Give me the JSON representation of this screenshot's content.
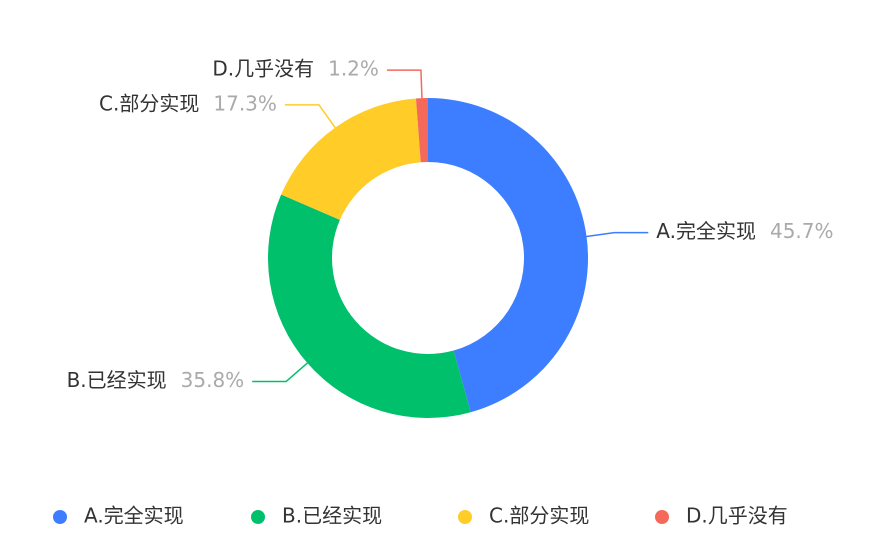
{
  "chart_data": {
    "type": "donut",
    "categories": [
      "A.完全实现",
      "B.已经实现",
      "C.部分实现",
      "D.几乎没有"
    ],
    "values": [
      45.7,
      35.8,
      17.3,
      1.2
    ],
    "value_labels": [
      "45.7%",
      "35.8%",
      "17.3%",
      "1.2%"
    ],
    "colors": [
      "#3c7eff",
      "#00c06b",
      "#ffcc28",
      "#f4695a"
    ],
    "legend": "bottom"
  }
}
